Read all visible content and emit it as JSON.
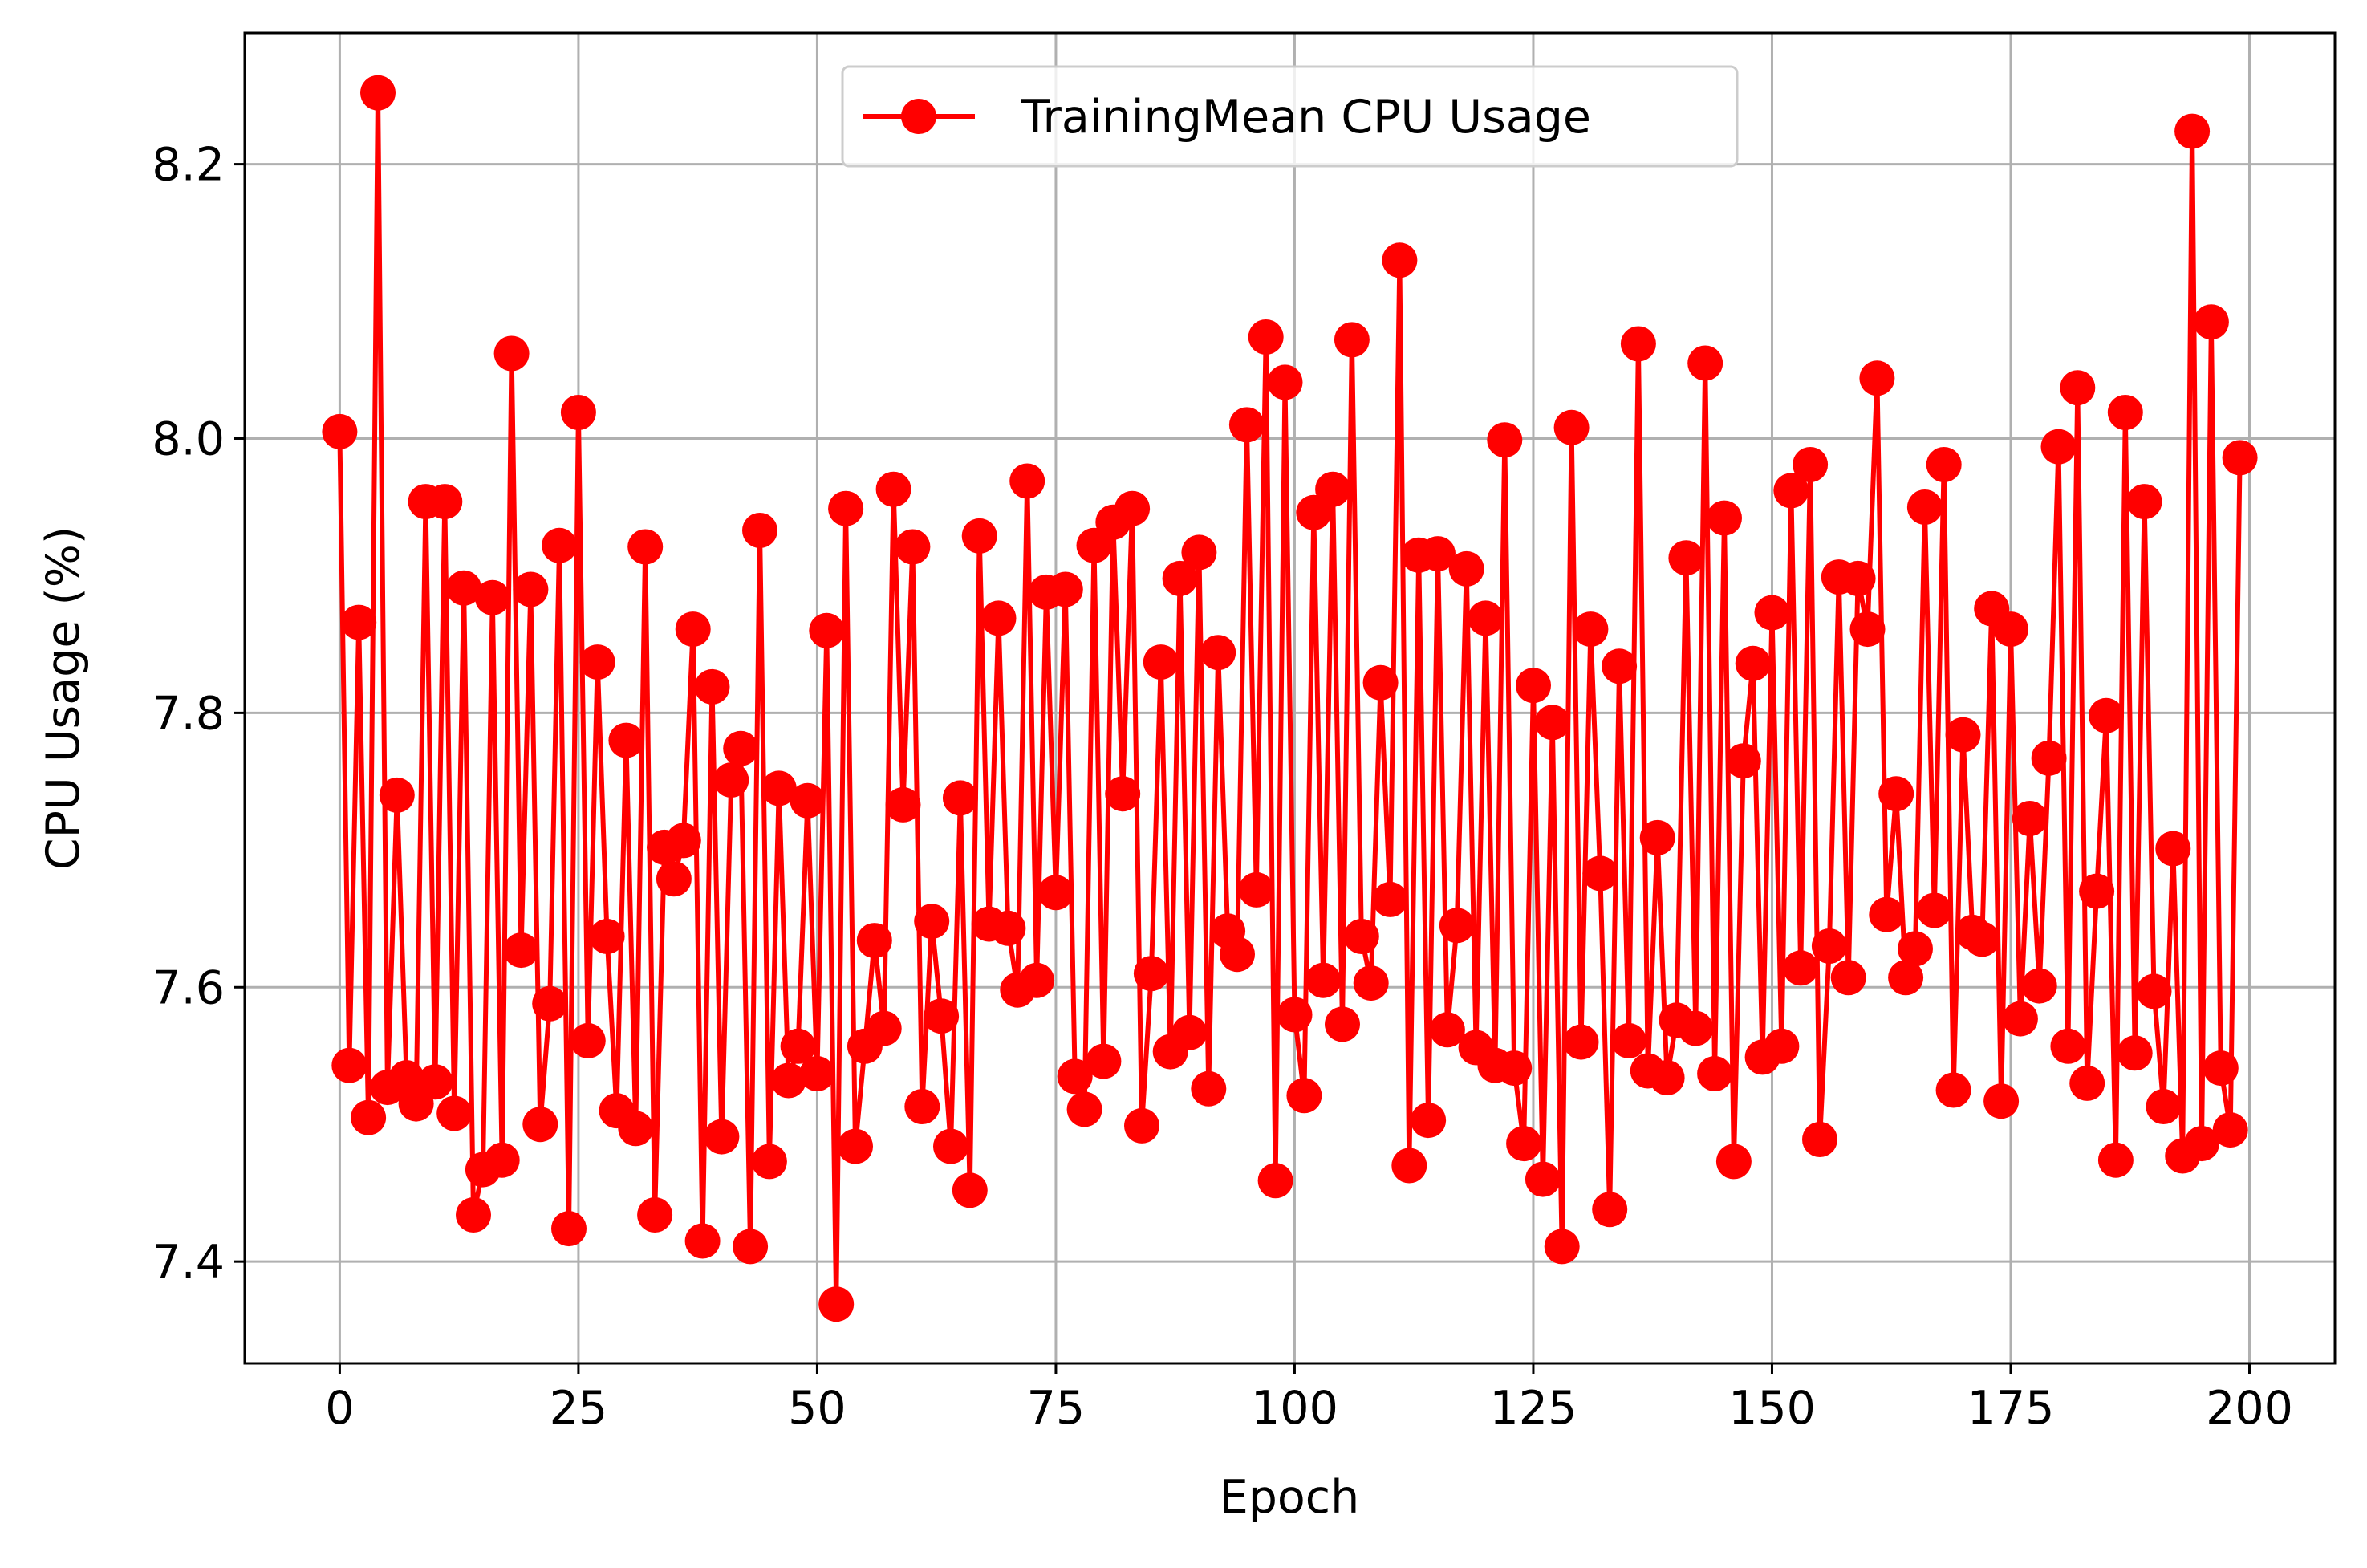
{
  "chart_data": {
    "type": "line",
    "title": "",
    "xlabel": "Epoch",
    "ylabel": "CPU Usage (%)",
    "xlim": [
      -9.95,
      208.95
    ],
    "ylim": [
      7.3258,
      8.2957
    ],
    "xticks": [
      0,
      25,
      50,
      75,
      100,
      125,
      150,
      175,
      200
    ],
    "xtick_labels": [
      "0",
      "25",
      "50",
      "75",
      "100",
      "125",
      "150",
      "175",
      "200"
    ],
    "yticks": [
      7.4,
      7.6,
      7.8,
      8.0,
      8.2
    ],
    "ytick_labels": [
      "7.4",
      "7.6",
      "7.8",
      "8.0",
      "8.2"
    ],
    "grid": true,
    "legend_position": "upper center",
    "series": [
      {
        "name": "TrainingMean CPU Usage",
        "color": "#ff0000",
        "marker": "circle",
        "x": [
          0,
          1,
          2,
          3,
          4,
          5,
          6,
          7,
          8,
          9,
          10,
          11,
          12,
          13,
          14,
          15,
          16,
          17,
          18,
          19,
          20,
          21,
          22,
          23,
          24,
          25,
          26,
          27,
          28,
          29,
          30,
          31,
          32,
          33,
          34,
          35,
          36,
          37,
          38,
          39,
          40,
          41,
          42,
          43,
          44,
          45,
          46,
          47,
          48,
          49,
          50,
          51,
          52,
          53,
          54,
          55,
          56,
          57,
          58,
          59,
          60,
          61,
          62,
          63,
          64,
          65,
          66,
          67,
          68,
          69,
          70,
          71,
          72,
          73,
          74,
          75,
          76,
          77,
          78,
          79,
          80,
          81,
          82,
          83,
          84,
          85,
          86,
          87,
          88,
          89,
          90,
          91,
          92,
          93,
          94,
          95,
          96,
          97,
          98,
          99,
          100,
          101,
          102,
          103,
          104,
          105,
          106,
          107,
          108,
          109,
          110,
          111,
          112,
          113,
          114,
          115,
          116,
          117,
          118,
          119,
          120,
          121,
          122,
          123,
          124,
          125,
          126,
          127,
          128,
          129,
          130,
          131,
          132,
          133,
          134,
          135,
          136,
          137,
          138,
          139,
          140,
          141,
          142,
          143,
          144,
          145,
          146,
          147,
          148,
          149,
          150,
          151,
          152,
          153,
          154,
          155,
          156,
          157,
          158,
          159,
          160,
          161,
          162,
          163,
          164,
          165,
          166,
          167,
          168,
          169,
          170,
          171,
          172,
          173,
          174,
          175,
          176,
          177,
          178,
          179,
          180,
          181,
          182,
          183,
          184,
          185,
          186,
          187,
          188,
          189,
          190,
          191,
          192,
          193,
          194,
          195,
          196,
          197,
          198,
          199
        ],
        "y": [
          8.005,
          7.543,
          7.866,
          7.505,
          8.252,
          7.527,
          7.74,
          7.534,
          7.515,
          7.954,
          7.531,
          7.954,
          7.508,
          7.891,
          7.434,
          7.467,
          7.884,
          7.474,
          8.062,
          7.627,
          7.89,
          7.5,
          7.588,
          7.922,
          7.424,
          8.019,
          7.561,
          7.837,
          7.637,
          7.51,
          7.78,
          7.497,
          7.921,
          7.434,
          7.702,
          7.679,
          7.707,
          7.861,
          7.415,
          7.819,
          7.491,
          7.751,
          7.774,
          7.411,
          7.933,
          7.473,
          7.745,
          7.532,
          7.557,
          7.736,
          7.537,
          7.86,
          7.369,
          7.949,
          7.484,
          7.557,
          7.634,
          7.57,
          7.963,
          7.733,
          7.921,
          7.513,
          7.648,
          7.579,
          7.484,
          7.738,
          7.452,
          7.929,
          7.646,
          7.869,
          7.643,
          7.598,
          7.969,
          7.605,
          7.888,
          7.669,
          7.89,
          7.535,
          7.511,
          7.922,
          7.546,
          7.939,
          7.741,
          7.949,
          7.499,
          7.61,
          7.837,
          7.553,
          7.898,
          7.567,
          7.917,
          7.526,
          7.844,
          7.641,
          7.624,
          8.01,
          7.671,
          8.074,
          7.459,
          8.041,
          7.58,
          7.521,
          7.946,
          7.605,
          7.963,
          7.573,
          8.072,
          7.637,
          7.603,
          7.822,
          7.664,
          8.13,
          7.47,
          7.915,
          7.503,
          7.916,
          7.569,
          7.645,
          7.905,
          7.556,
          7.869,
          7.543,
          7.999,
          7.541,
          7.486,
          7.82,
          7.46,
          7.793,
          7.411,
          8.008,
          7.56,
          7.861,
          7.683,
          7.438,
          7.834,
          7.561,
          8.069,
          7.539,
          7.709,
          7.534,
          7.576,
          7.913,
          7.57,
          8.055,
          7.537,
          7.942,
          7.473,
          7.765,
          7.836,
          7.549,
          7.873,
          7.557,
          7.962,
          7.614,
          7.981,
          7.489,
          7.63,
          7.899,
          7.607,
          7.898,
          7.861,
          8.044,
          7.653,
          7.741,
          7.607,
          7.628,
          7.95,
          7.656,
          7.981,
          7.525,
          7.784,
          7.64,
          7.635,
          7.876,
          7.517,
          7.861,
          7.577,
          7.723,
          7.601,
          7.767,
          7.994,
          7.557,
          8.037,
          7.53,
          7.67,
          7.798,
          7.474,
          8.019,
          7.552,
          7.954,
          7.597,
          7.513,
          7.701,
          7.477,
          8.224,
          7.486,
          8.085,
          7.541,
          7.496,
          7.986
        ]
      }
    ]
  }
}
